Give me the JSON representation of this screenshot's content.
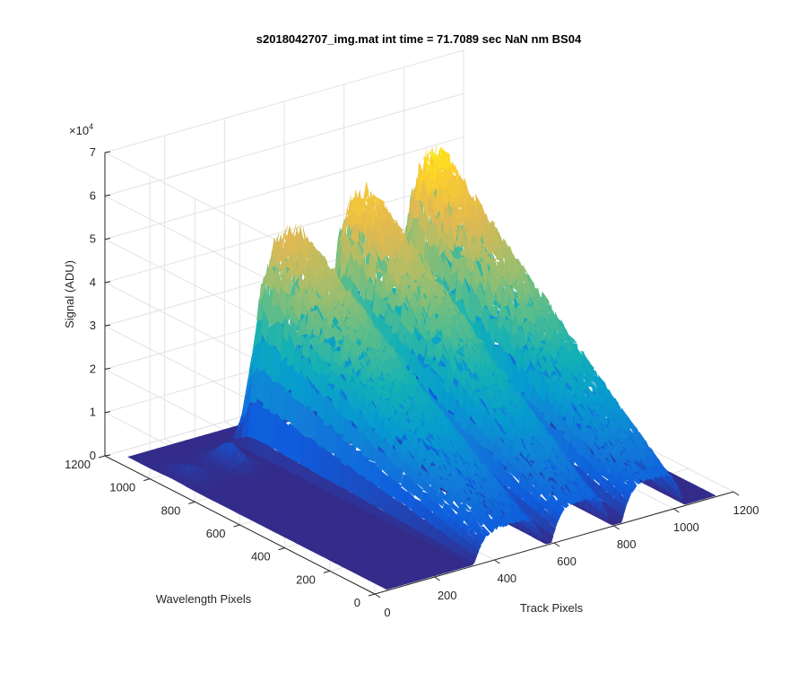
{
  "chart_data": {
    "type": "surface",
    "title": "s2018042707_img.mat int time = 71.7089 sec  NaN nm BS04",
    "xlabel": "Track Pixels",
    "ylabel": "Wavelength Pixels",
    "zlabel": "Signal (ADU)",
    "z_exponent_label": "×10",
    "z_exponent_power": "4",
    "xlim": [
      0,
      1200
    ],
    "ylim": [
      0,
      1200
    ],
    "zlim": [
      0,
      70000
    ],
    "x_ticks": [
      "0",
      "200",
      "400",
      "600",
      "800",
      "1000",
      "1200"
    ],
    "y_ticks": [
      "0",
      "200",
      "400",
      "600",
      "800",
      "1000",
      "1200"
    ],
    "z_ticks": [
      "0",
      "1",
      "2",
      "3",
      "4",
      "5",
      "6",
      "7"
    ],
    "grid": true,
    "colormap": "parula",
    "colors": {
      "low": "#352a87",
      "mid": "#12bdb9",
      "high": "#f9fb0e"
    },
    "peaks": [
      {
        "track_center": 450,
        "track_width": 240,
        "peak_signal": 50000,
        "wavelength_start": 0,
        "wavelength_end": 1000
      },
      {
        "track_center": 690,
        "track_width": 200,
        "peak_signal": 55000,
        "wavelength_start": 0,
        "wavelength_end": 1000
      },
      {
        "track_center": 930,
        "track_width": 210,
        "peak_signal": 59000,
        "wavelength_start": 0,
        "wavelength_end": 1000
      }
    ],
    "minor_bumps": [
      {
        "track_center": 100,
        "peak_signal": 2000,
        "wavelength_center": 950
      },
      {
        "track_center": 230,
        "peak_signal": 5000,
        "wavelength_center": 950
      }
    ]
  }
}
